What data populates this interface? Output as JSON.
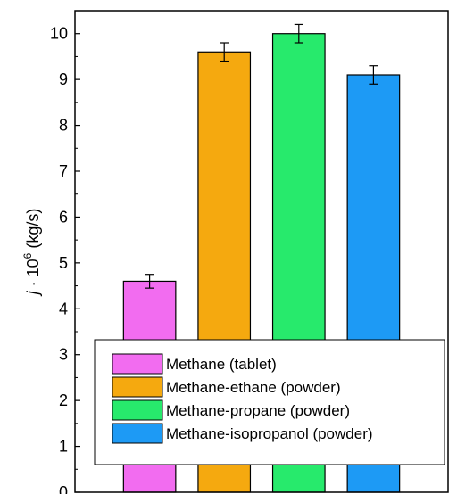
{
  "chart_data": {
    "type": "bar",
    "title": "",
    "xlabel": "",
    "ylabel": {
      "prefix": "j",
      "middle": " · 10",
      "exponent": "6",
      "suffix": " (kg/s)"
    },
    "ylim": [
      0,
      10.5
    ],
    "yticks": [
      "0",
      "1",
      "2",
      "3",
      "4",
      "5",
      "6",
      "7",
      "8",
      "9",
      "10"
    ],
    "categories": [
      "Methane (tablet)",
      "Methane-ethane (powder)",
      "Methane-propane (powder)",
      "Methane-isopropanol (powder)"
    ],
    "values": [
      4.6,
      9.6,
      10.0,
      9.1
    ],
    "errors": [
      0.15,
      0.2,
      0.2,
      0.2
    ],
    "colors": [
      "#f26cf0",
      "#f5a90f",
      "#27ea6c",
      "#1d9af5"
    ],
    "grid": false,
    "legend": {
      "position": "bottom-center",
      "entries": [
        "Methane (tablet)",
        "Methane-ethane (powder)",
        "Methane-propane (powder)",
        "Methane-isopropanol (powder)"
      ]
    }
  }
}
